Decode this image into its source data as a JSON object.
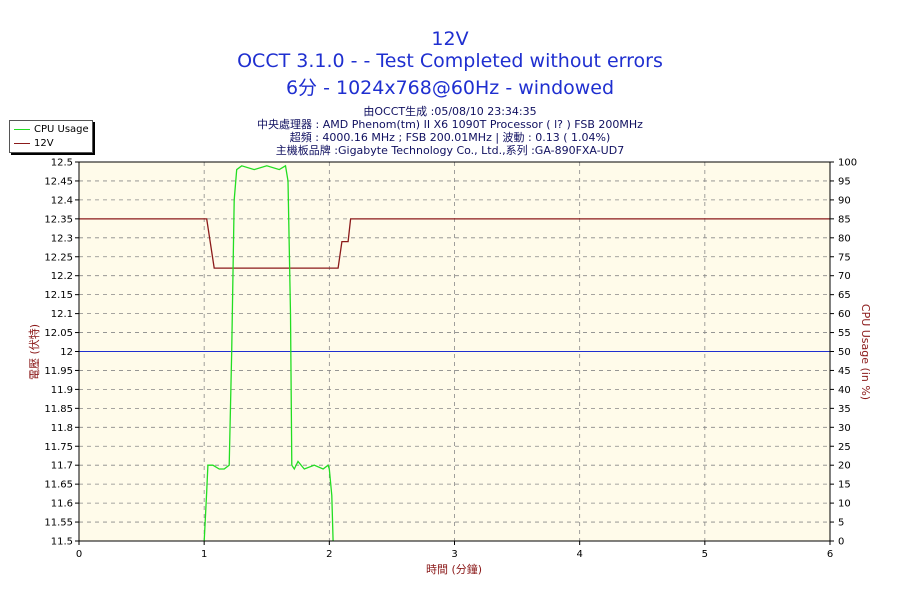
{
  "header": {
    "title": "12V",
    "subtitle1": "OCCT 3.1.0 -  - Test Completed without errors",
    "subtitle2": "6分 - 1024x768@60Hz - windowed",
    "info1": "由OCCT生成 :05/08/10 23:34:35",
    "info2": "中央處理器 : AMD Phenom(tm) II X6 1090T Processor (  l? ) FSB 200MHz",
    "info3": "超頻 : 4000.16 MHz ; FSB 200.01MHz | 波動 : 0.13 ( 1.04%)",
    "info4": "主機板品牌 :Gigabyte Technology Co., Ltd.,系列 :GA-890FXA-UD7"
  },
  "legend": {
    "items": [
      {
        "label": "CPU Usage",
        "color": "#22dd22"
      },
      {
        "label": "12V",
        "color": "#8b1a1a"
      }
    ]
  },
  "chart_data": {
    "type": "line",
    "xlabel": "時間 (分鐘)",
    "ylabel": "電壓 (伏特)",
    "y2label": "CPU Usage (in %)",
    "xlim": [
      0,
      6
    ],
    "ylim": [
      11.5,
      12.5
    ],
    "y2lim": [
      0,
      100
    ],
    "x_ticks": [
      "0",
      "1",
      "2",
      "3",
      "4",
      "5",
      "6"
    ],
    "y_ticks": [
      "11.5",
      "11.55",
      "11.6",
      "11.65",
      "11.7",
      "11.75",
      "11.8",
      "11.85",
      "11.9",
      "11.95",
      "12",
      "12.05",
      "12.1",
      "12.15",
      "12.2",
      "12.25",
      "12.3",
      "12.35",
      "12.4",
      "12.45",
      "12.5"
    ],
    "y2_ticks": [
      "0",
      "5",
      "10",
      "15",
      "20",
      "25",
      "30",
      "35",
      "40",
      "45",
      "50",
      "55",
      "60",
      "65",
      "70",
      "75",
      "80",
      "85",
      "90",
      "95",
      "100"
    ],
    "grid": true,
    "reference_line": {
      "y": 12.0,
      "color": "#1f2fd0"
    },
    "colors": {
      "plot_bg": "#fffbea",
      "axis_text": "#8b1a1a",
      "grid": "#888888"
    },
    "series": [
      {
        "name": "12V",
        "axis": "left",
        "color": "#8b1a1a",
        "x": [
          0,
          1.02,
          1.08,
          1.7,
          2.07,
          2.1,
          2.15,
          2.17,
          6
        ],
        "y": [
          12.35,
          12.35,
          12.22,
          12.22,
          12.22,
          12.29,
          12.29,
          12.35,
          12.35
        ]
      },
      {
        "name": "CPU Usage",
        "axis": "right",
        "color": "#22dd22",
        "x": [
          1.0,
          1.02,
          1.03,
          1.07,
          1.12,
          1.16,
          1.2,
          1.22,
          1.24,
          1.26,
          1.3,
          1.4,
          1.5,
          1.6,
          1.65,
          1.67,
          1.69,
          1.7,
          1.72,
          1.75,
          1.8,
          1.88,
          1.95,
          1.99,
          2.0,
          2.02,
          2.03
        ],
        "y": [
          0,
          13,
          20,
          20,
          19,
          19,
          20,
          50,
          90,
          98,
          99,
          98,
          99,
          98,
          99,
          95,
          60,
          20,
          19,
          21,
          19,
          20,
          19,
          20,
          19,
          12,
          0
        ]
      }
    ]
  }
}
